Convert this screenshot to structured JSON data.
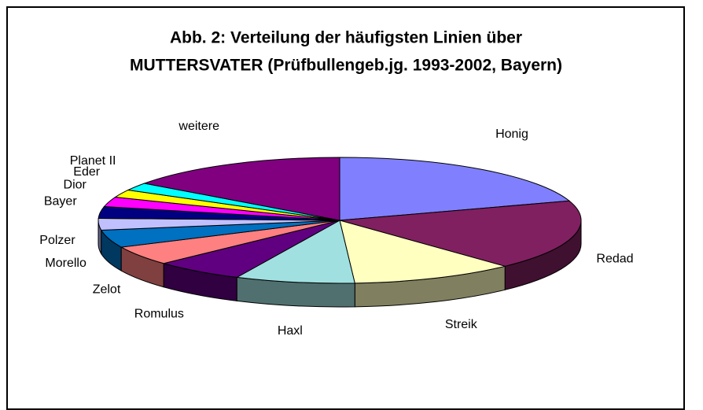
{
  "chart_data": {
    "type": "pie3d",
    "title": [
      "Abb. 2: Verteilung der häufigsten Linien über",
      "MUTTERSVATER (Prüfbullengeb.jg. 1993-2002, Bayern)"
    ],
    "categories": [
      "Honig",
      "Redad",
      "Streik",
      "Haxl",
      "Romulus",
      "Zelot",
      "Morello",
      "Polzer",
      "Bayer",
      "Dior",
      "Eder",
      "Planet II",
      "weitere"
    ],
    "values": [
      20,
      18,
      11,
      8,
      6,
      5,
      4.5,
      3,
      3,
      2.5,
      2,
      2,
      15
    ],
    "colors": [
      "#8080ff",
      "#802060",
      "#ffffc0",
      "#a0e0e0",
      "#600080",
      "#ff8080",
      "#0070c0",
      "#c0c0ff",
      "#000080",
      "#ff00ff",
      "#ffff00",
      "#00ffff",
      "#800080"
    ]
  }
}
